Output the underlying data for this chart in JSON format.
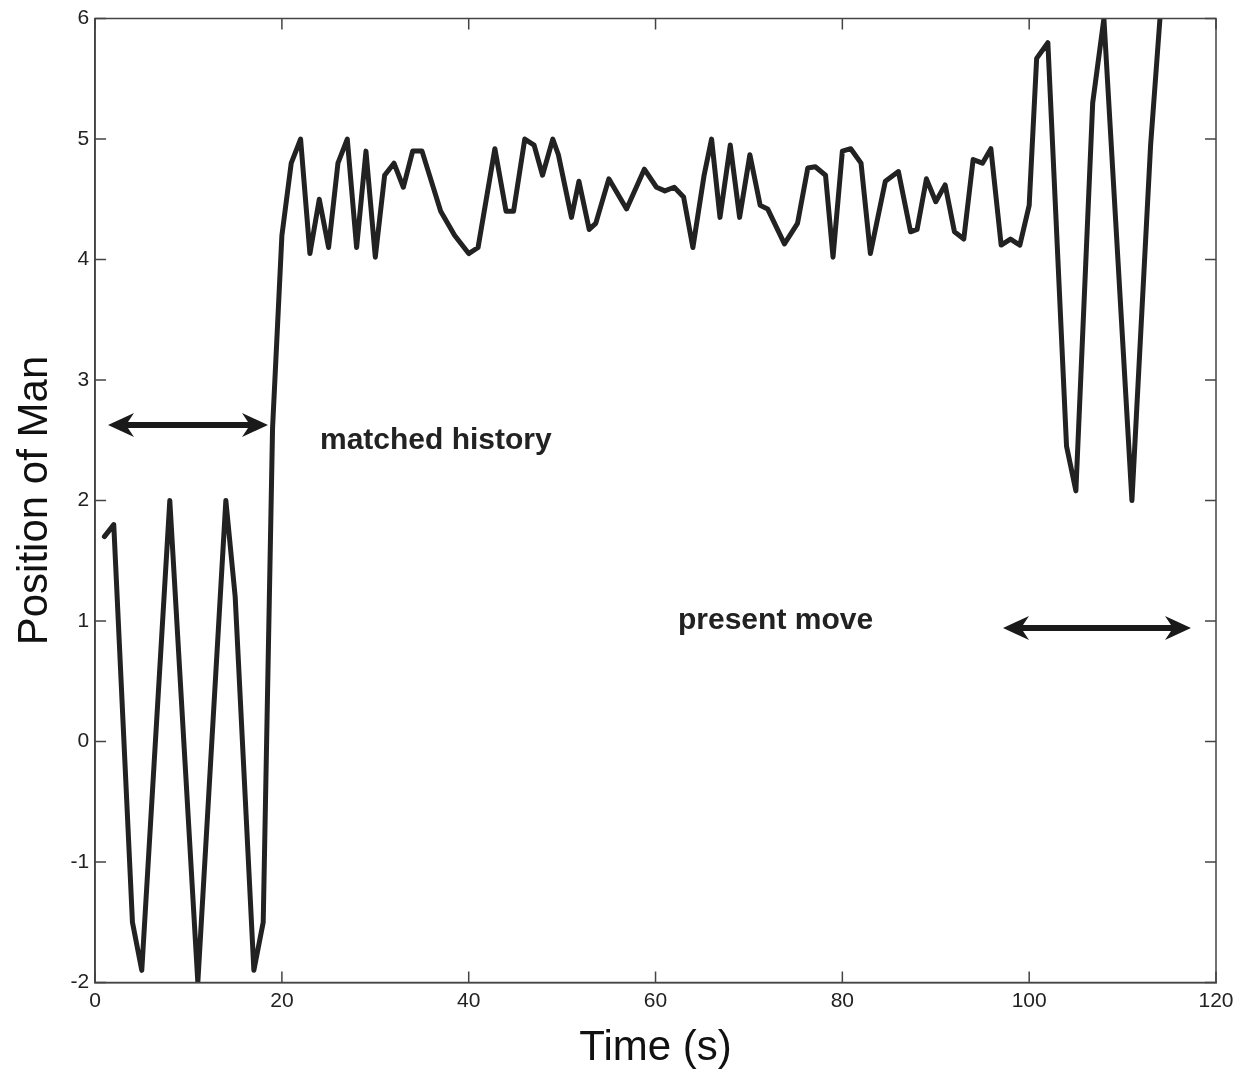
{
  "chart_data": {
    "type": "line",
    "xlabel": "Time (s)",
    "ylabel": "Position of Man",
    "annotations": [
      "matched history",
      "present move"
    ],
    "xlim": [
      0,
      120
    ],
    "xticks": [
      0,
      20,
      40,
      60,
      80,
      100,
      120
    ],
    "ylim": [
      -2,
      6
    ],
    "yticks": [
      -2,
      -1,
      0,
      1,
      2,
      3,
      4,
      5,
      6
    ],
    "grid": false,
    "legend": false,
    "marker": "none",
    "line_style": "solid",
    "series": [
      {
        "color": "#222222",
        "x": [
          1,
          2,
          4,
          5,
          8,
          11,
          14,
          15,
          17,
          18,
          19,
          20,
          21,
          22,
          23,
          24,
          25,
          26,
          27,
          28,
          29,
          30,
          31,
          32,
          33,
          34,
          35,
          37,
          38.5,
          40,
          41,
          42.8,
          44,
          44.8,
          46,
          47,
          47.9,
          49,
          49.6,
          51,
          51.8,
          52.9,
          53.6,
          55,
          56.9,
          58.8,
          60.1,
          61,
          62,
          63,
          64,
          65.2,
          66,
          66.9,
          68,
          69,
          70.1,
          71.2,
          72,
          73.8,
          75.2,
          76.3,
          77.1,
          78.2,
          79,
          80,
          80.9,
          82,
          83,
          84.6,
          86,
          87.3,
          88,
          89,
          90,
          91,
          92,
          93,
          94,
          95,
          95.9,
          97,
          98,
          99,
          100,
          100.8,
          102,
          104,
          105,
          106.8,
          108,
          111,
          113,
          114
        ],
        "values": [
          1.7,
          1.8,
          -1.5,
          -1.9,
          2.0,
          -2.0,
          2.0,
          1.2,
          -1.9,
          -1.5,
          2.6,
          4.2,
          4.8,
          5.0,
          4.05,
          4.5,
          4.1,
          4.8,
          5.0,
          4.1,
          4.9,
          4.02,
          4.7,
          4.8,
          4.6,
          4.9,
          4.9,
          4.4,
          4.2,
          4.05,
          4.1,
          4.92,
          4.4,
          4.4,
          5.0,
          4.95,
          4.7,
          5.0,
          4.87,
          4.35,
          4.65,
          4.25,
          4.3,
          4.67,
          4.42,
          4.75,
          4.6,
          4.57,
          4.6,
          4.52,
          4.1,
          4.7,
          5.0,
          4.35,
          4.95,
          4.35,
          4.87,
          4.45,
          4.42,
          4.13,
          4.3,
          4.76,
          4.77,
          4.7,
          4.02,
          4.9,
          4.92,
          4.8,
          4.05,
          4.65,
          4.73,
          4.23,
          4.25,
          4.67,
          4.48,
          4.62,
          4.23,
          4.17,
          4.83,
          4.8,
          4.92,
          4.12,
          4.17,
          4.12,
          4.45,
          5.67,
          5.8,
          2.45,
          2.08,
          5.3,
          6.0,
          2.0,
          4.95,
          6.0
        ]
      }
    ]
  }
}
